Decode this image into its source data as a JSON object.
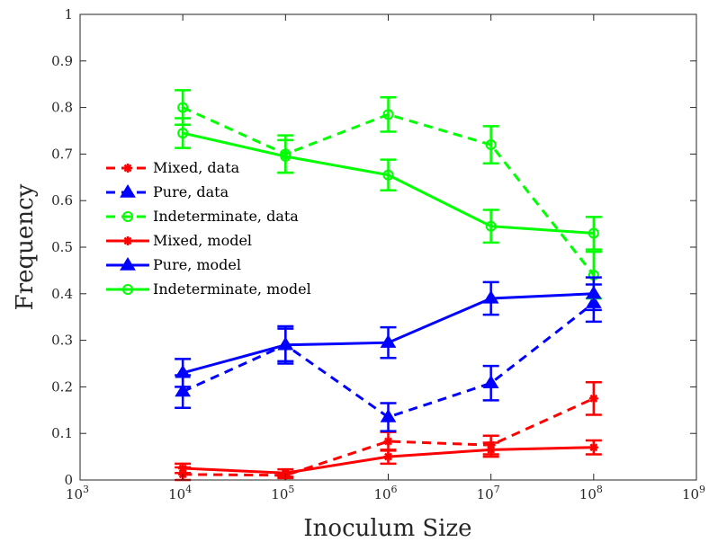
{
  "chart_data": {
    "type": "line",
    "xlabel": "Inoculum Size",
    "ylabel": "Frequency",
    "xscale": "log",
    "xlim": [
      1000,
      1000000000
    ],
    "ylim": [
      0,
      1
    ],
    "xticks": [
      {
        "base": "10",
        "exp": "3"
      },
      {
        "base": "10",
        "exp": "4"
      },
      {
        "base": "10",
        "exp": "5"
      },
      {
        "base": "10",
        "exp": "6"
      },
      {
        "base": "10",
        "exp": "7"
      },
      {
        "base": "10",
        "exp": "8"
      },
      {
        "base": "10",
        "exp": "9"
      }
    ],
    "yticks": [
      "0",
      "0.1",
      "0.2",
      "0.3",
      "0.4",
      "0.5",
      "0.6",
      "0.7",
      "0.8",
      "0.9",
      "1"
    ],
    "x": [
      10000,
      100000,
      1000000,
      10000000,
      100000000
    ],
    "legend_position": "left-middle",
    "series": [
      {
        "name": "Mixed, data",
        "color": "#ff0000",
        "style": "dashed",
        "marker": "asterisk",
        "values": [
          0.012,
          0.01,
          0.083,
          0.075,
          0.175
        ],
        "errors": [
          0.015,
          0.006,
          0.02,
          0.02,
          0.035
        ]
      },
      {
        "name": "Pure, data",
        "color": "#0000ff",
        "style": "dashed",
        "marker": "triangle",
        "values": [
          0.19,
          0.29,
          0.135,
          0.208,
          0.38
        ],
        "errors": [
          0.035,
          0.04,
          0.03,
          0.037,
          0.04
        ]
      },
      {
        "name": "Indeterminate, data",
        "color": "#00ff00",
        "style": "dashed",
        "marker": "circle",
        "values": [
          0.8,
          0.7,
          0.785,
          0.72,
          0.44
        ],
        "errors": [
          0.037,
          0.04,
          0.037,
          0.04,
          0.05
        ]
      },
      {
        "name": "Mixed, model",
        "color": "#ff0000",
        "style": "solid",
        "marker": "asterisk",
        "values": [
          0.025,
          0.015,
          0.05,
          0.065,
          0.07
        ],
        "errors": [
          0.01,
          0.008,
          0.015,
          0.015,
          0.015
        ]
      },
      {
        "name": "Pure, model",
        "color": "#0000ff",
        "style": "solid",
        "marker": "triangle",
        "values": [
          0.23,
          0.29,
          0.295,
          0.39,
          0.4
        ],
        "errors": [
          0.03,
          0.035,
          0.033,
          0.035,
          0.035
        ]
      },
      {
        "name": "Indeterminate, model",
        "color": "#00ff00",
        "style": "solid",
        "marker": "circle",
        "values": [
          0.745,
          0.695,
          0.655,
          0.545,
          0.53
        ],
        "errors": [
          0.032,
          0.035,
          0.033,
          0.035,
          0.035
        ]
      }
    ]
  }
}
